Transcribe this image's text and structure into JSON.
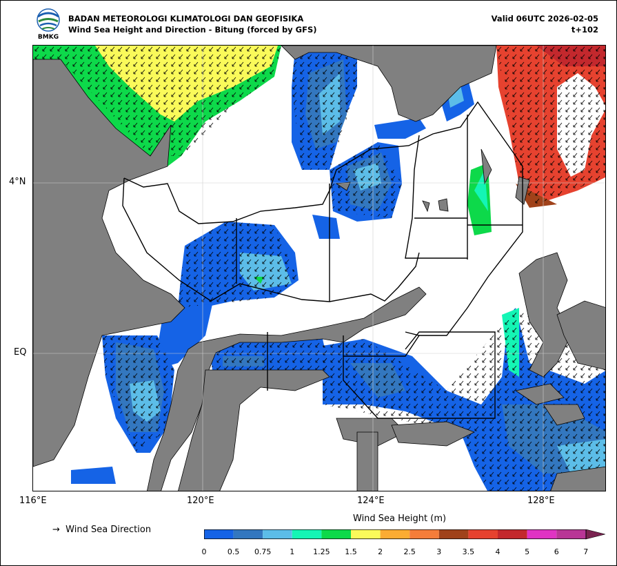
{
  "header": {
    "org": "BADAN METEOROLOGI KLIMATOLOGI DAN GEOFISIKA",
    "product": "Wind Sea Height and Direction - Bitung (forced by GFS)",
    "valid": "Valid 06UTC 2026-02-05",
    "step": "t+102",
    "logo_text": "BMKG"
  },
  "map": {
    "lon_ticks": [
      "116°E",
      "120°E",
      "124°E",
      "128°E"
    ],
    "lat_ticks": [
      "4°N",
      "EQ"
    ],
    "land_color": "#808080",
    "grid": true
  },
  "legend": {
    "arrow_glyph": "→",
    "arrow_label": "Wind Sea Direction"
  },
  "colorbar": {
    "title": "Wind Sea Height (m)",
    "labels": [
      "0",
      "0.5",
      "0.75",
      "1",
      "1.25",
      "1.5",
      "2",
      "2.5",
      "3",
      "3.5",
      "4",
      "5",
      "6",
      "7"
    ],
    "colors": [
      "#1563e6",
      "#3377bf",
      "#5cbde8",
      "#14f5b5",
      "#0dd94a",
      "#fafa5a",
      "#fbac33",
      "#f57d3a",
      "#a0421a",
      "#e6422f",
      "#c3282d",
      "#e033c3",
      "#b93596"
    ],
    "extend_color": "#7a2350"
  }
}
